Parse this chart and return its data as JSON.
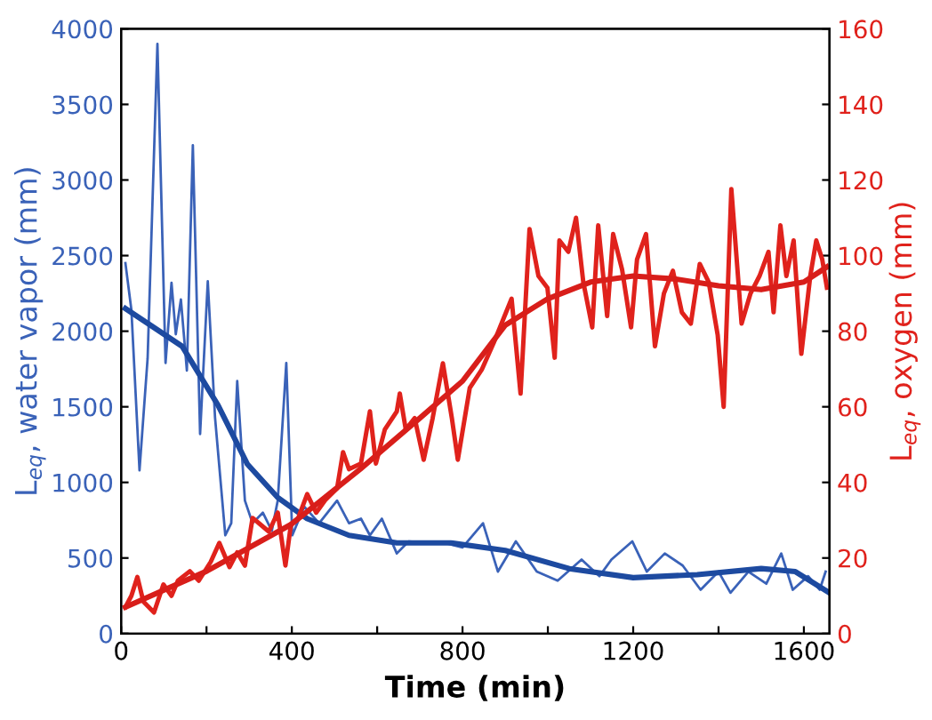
{
  "chart_data": {
    "type": "line",
    "xlabel": "Time (min)",
    "ylabel": "L$_{eq}$, water vapor (mm)",
    "y2label": "L$_{eq}$, oxygen (mm)",
    "xlim": [
      0,
      1660
    ],
    "xticks": [
      0,
      {
        "value": 200,
        "label": null
      },
      400,
      {
        "value": 600,
        "label": null
      },
      800,
      {
        "value": 1000,
        "label": null
      },
      1200,
      {
        "value": 1400,
        "label": null
      },
      1600
    ],
    "ylim": [
      0,
      4000
    ],
    "yticks": [
      0,
      500,
      1000,
      1500,
      2000,
      2500,
      3000,
      3500,
      4000
    ],
    "y2lim": [
      0,
      160
    ],
    "y2ticks": [
      0,
      20,
      40,
      60,
      80,
      100,
      120,
      140,
      160
    ],
    "grid": false,
    "legend": false,
    "marker": "none",
    "series": [
      {
        "color": "#3a62b8",
        "axis": "y",
        "x": [
          10,
          24,
          43,
          62,
          85,
          104,
          118,
          128,
          140,
          154,
          168,
          185,
          203,
          220,
          244,
          258,
          272,
          290,
          308,
          332,
          353,
          367,
          387,
          401,
          429,
          464,
          506,
          534,
          562,
          583,
          611,
          646,
          674,
          716,
          757,
          800,
          848,
          883,
          925,
          974,
          1023,
          1079,
          1121,
          1149,
          1198,
          1232,
          1274,
          1316,
          1358,
          1400,
          1428,
          1470,
          1512,
          1547,
          1574,
          1610,
          1637,
          1651
        ],
        "values": [
          2450,
          2140,
          1080,
          1820,
          3900,
          1790,
          2320,
          1980,
          2210,
          1740,
          3230,
          1320,
          2330,
          1430,
          650,
          730,
          1670,
          880,
          730,
          800,
          680,
          880,
          1790,
          650,
          840,
          730,
          880,
          730,
          760,
          650,
          760,
          530,
          610,
          600,
          600,
          570,
          730,
          410,
          610,
          410,
          350,
          490,
          380,
          490,
          610,
          410,
          530,
          450,
          290,
          410,
          270,
          410,
          330,
          530,
          290,
          380,
          290,
          410
        ]
      },
      {
        "color": "#1d4aa0",
        "axis": "y",
        "x": [
          10,
          143,
          227,
          296,
          367,
          436,
          534,
          646,
          772,
          900,
          1050,
          1200,
          1350,
          1500,
          1580,
          1660
        ],
        "values": [
          2150,
          1900,
          1510,
          1120,
          900,
          760,
          650,
          600,
          600,
          550,
          430,
          370,
          390,
          430,
          410,
          270
        ]
      },
      {
        "color": "#e0221c",
        "axis": "y2",
        "x": [
          10,
          24,
          38,
          52,
          77,
          99,
          118,
          133,
          161,
          182,
          210,
          230,
          254,
          272,
          290,
          308,
          325,
          346,
          367,
          385,
          398,
          415,
          436,
          457,
          478,
          506,
          520,
          534,
          562,
          583,
          597,
          618,
          646,
          653,
          667,
          688,
          709,
          730,
          754,
          775,
          789,
          817,
          845,
          873,
          915,
          936,
          957,
          978,
          999,
          1016,
          1027,
          1048,
          1066,
          1083,
          1104,
          1118,
          1139,
          1153,
          1174,
          1195,
          1209,
          1230,
          1251,
          1272,
          1293,
          1314,
          1335,
          1356,
          1377,
          1398,
          1412,
          1430,
          1454,
          1475,
          1496,
          1517,
          1529,
          1545,
          1559,
          1576,
          1594,
          1615,
          1629,
          1643,
          1654
        ],
        "values": [
          7,
          10,
          15,
          8.5,
          5.6,
          13,
          10,
          14,
          16.5,
          14,
          19,
          24,
          17.6,
          21.5,
          18,
          30.6,
          29,
          27,
          32,
          18,
          29,
          30.6,
          36.9,
          32,
          35.3,
          38.4,
          48,
          43.5,
          45,
          58.8,
          45,
          54,
          58.8,
          63.5,
          54,
          57,
          46,
          57,
          71.5,
          57,
          46,
          65,
          69.8,
          76.9,
          88.6,
          63.5,
          107,
          94.6,
          91.5,
          73,
          104,
          101,
          110,
          93,
          81,
          108,
          84,
          105.7,
          96.3,
          81,
          99,
          105.7,
          76,
          90,
          96,
          85,
          82,
          97.8,
          93,
          79,
          60,
          117.6,
          82,
          90,
          94.6,
          101,
          85,
          108,
          94.6,
          104,
          74,
          94.6,
          104,
          99,
          91.5
        ]
      },
      {
        "color": "#d81e1a",
        "axis": "y2",
        "x": [
          10,
          200,
          400,
          560,
          700,
          800,
          900,
          1000,
          1100,
          1200,
          1300,
          1400,
          1500,
          1600,
          1654
        ],
        "values": [
          7,
          16.5,
          29,
          43.5,
          57,
          66.8,
          81.6,
          88.6,
          93,
          94.6,
          93.8,
          92,
          91,
          93,
          97
        ]
      }
    ]
  }
}
